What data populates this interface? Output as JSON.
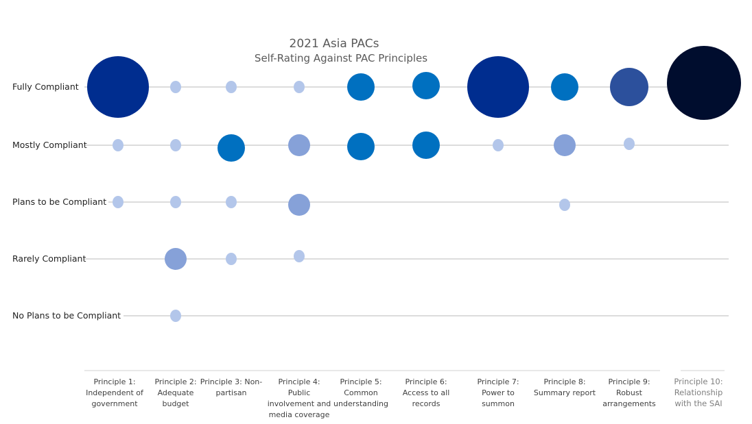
{
  "chart_data": {
    "type": "bubble",
    "title": "2021 Asia PACs",
    "subtitle": "Self-Rating Against PAC Principles",
    "rows": [
      "Fully Compliant",
      "Mostly Compliant",
      "Plans to be Compliant",
      "Rarely Compliant",
      "No Plans to be Compliant"
    ],
    "columns": [
      "Principle 1: Independent of government",
      "Principle 2: Adequate budget",
      "Principle 3: Non-partisan",
      "Principle 4: Public involvement and media coverage",
      "Principle 5: Common understanding",
      "Principle 6: Access to all records",
      "Principle 7: Power to summon",
      "Principle 8: Summary report",
      "Principle 9: Robust arrangements",
      "Principle 10: Relationship with the SAI"
    ],
    "column_label_lines": [
      [
        "Principle 1:",
        "Independent of",
        "government"
      ],
      [
        "Principle 2:",
        "Adequate",
        "budget"
      ],
      [
        "Principle 3: Non-",
        "partisan"
      ],
      [
        "Principle 4:",
        "Public",
        "involvement and",
        "media coverage"
      ],
      [
        "Principle 5:",
        "Common",
        "understanding"
      ],
      [
        "Principle 6:",
        "Access to all",
        "records"
      ],
      [
        "Principle 7:",
        "Power to",
        "summon"
      ],
      [
        "Principle 8:",
        "Summary report"
      ],
      [
        "Principle 9:",
        "Robust",
        "arrangements"
      ],
      [
        "Principle 10:",
        "Relationship",
        "with the SAI"
      ]
    ],
    "relative_sizes": [
      [
        10,
        1,
        1,
        1,
        4,
        4,
        10,
        4,
        6,
        15
      ],
      [
        1,
        1,
        4,
        3,
        4,
        4,
        1,
        3,
        1,
        0
      ],
      [
        1,
        1,
        1,
        3,
        0,
        0,
        0,
        1,
        0,
        0
      ],
      [
        0,
        3,
        1,
        1,
        0,
        0,
        0,
        0,
        0,
        0
      ],
      [
        0,
        1,
        0,
        0,
        0,
        0,
        0,
        0,
        0,
        0
      ]
    ],
    "colors": {
      "largest": "#000d2e",
      "large": "#002d8f",
      "medium_dark": "#2c509c",
      "medium": "#0070c0",
      "medium_light": "#86a1d8",
      "small": "#b3c6ea",
      "grid": "#b8b8b8",
      "axis_line": "#d0d0d0"
    },
    "legend": "none"
  }
}
